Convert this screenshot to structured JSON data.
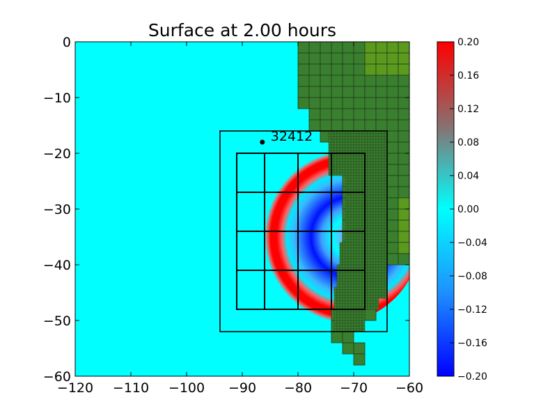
{
  "chart_data": {
    "type": "heatmap",
    "title": "Surface at 2.00 hours",
    "xlabel": "",
    "ylabel": "",
    "xlim": [
      -120,
      -60
    ],
    "ylim": [
      -60,
      0
    ],
    "x_ticks": [
      -120,
      -110,
      -100,
      -90,
      -80,
      -70,
      -60
    ],
    "y_ticks": [
      0,
      -10,
      -20,
      -30,
      -40,
      -50,
      -60
    ],
    "x_tick_labels": [
      "−120",
      "−110",
      "−100",
      "−90",
      "−80",
      "−70",
      "−60"
    ],
    "y_tick_labels": [
      "0",
      "−10",
      "−20",
      "−30",
      "−40",
      "−50",
      "−60"
    ],
    "colorbar": {
      "min": -0.2,
      "max": 0.2,
      "ticks": [
        0.2,
        0.16,
        0.12,
        0.08,
        0.04,
        0.0,
        -0.04,
        -0.08,
        -0.12,
        -0.16,
        -0.2
      ],
      "tick_labels": [
        "0.20",
        "0.16",
        "0.12",
        "0.08",
        "0.04",
        "0.00",
        "−0.04",
        "−0.08",
        "−0.12",
        "−0.16",
        "−0.20"
      ]
    },
    "gauge": {
      "label": "32412",
      "lon": -86.4,
      "lat": -18.0
    },
    "grid_regions": [
      {
        "xlim": [
          -94,
          -64
        ],
        "ylim": [
          -52,
          -16
        ]
      },
      {
        "xlim": [
          -91,
          -68
        ],
        "ylim": [
          -48,
          -20
        ],
        "x_lines": [
          -86,
          -80,
          -74
        ],
        "y_lines": [
          -27,
          -34,
          -41
        ]
      }
    ],
    "wave": {
      "center_lon": -73.5,
      "center_lat": -35.0,
      "outer_radius_deg": 15.5,
      "amplitude": 0.2
    },
    "colors": {
      "water": "#00ffff",
      "land": "#3a7f2f",
      "land_high": "#5c9a1e",
      "grid": "#000000"
    },
    "grid": false
  }
}
